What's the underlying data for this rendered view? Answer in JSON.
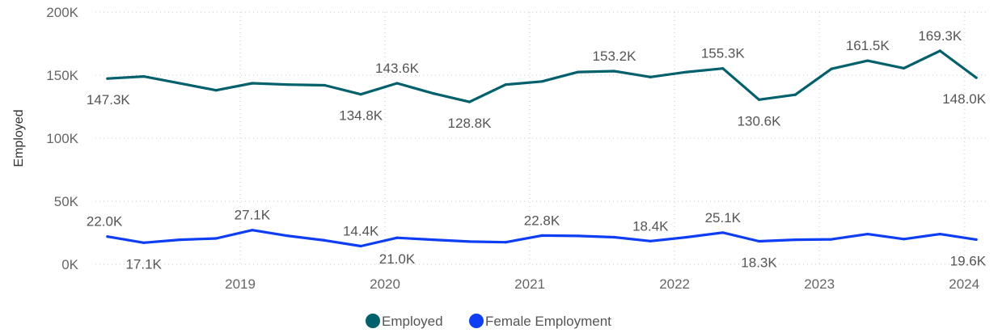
{
  "chart_data": {
    "type": "line",
    "ylabel": "Employed",
    "ylim": [
      0,
      200000
    ],
    "y_ticks": [
      {
        "value": 0,
        "label": "0K"
      },
      {
        "value": 50000,
        "label": "50K"
      },
      {
        "value": 100000,
        "label": "100K"
      },
      {
        "value": 150000,
        "label": "150K"
      },
      {
        "value": 200000,
        "label": "200K"
      }
    ],
    "x_ticks": [
      "2019",
      "2020",
      "2021",
      "2022",
      "2023",
      "2024"
    ],
    "grid": true,
    "legend_position": "bottom-center",
    "x": [
      "2018-02",
      "2018-05",
      "2018-08",
      "2018-11",
      "2019-02",
      "2019-05",
      "2019-08",
      "2019-11",
      "2020-02",
      "2020-05",
      "2020-08",
      "2020-11",
      "2021-02",
      "2021-05",
      "2021-08",
      "2021-11",
      "2022-02",
      "2022-05",
      "2022-08",
      "2022-11",
      "2023-02",
      "2023-05",
      "2023-08",
      "2023-11",
      "2024-02"
    ],
    "series": [
      {
        "name": "Employed",
        "color": "#00606b",
        "values": [
          147300,
          149000,
          143500,
          138000,
          143600,
          142500,
          142000,
          134800,
          143600,
          135500,
          128800,
          142500,
          145000,
          152500,
          153200,
          148500,
          152500,
          155300,
          130600,
          134500,
          155000,
          161500,
          155500,
          169300,
          148000
        ],
        "labels": [
          {
            "index": 0,
            "text": "147.3K",
            "pos": "below"
          },
          {
            "index": 7,
            "text": "134.8K",
            "pos": "below"
          },
          {
            "index": 8,
            "text": "143.6K",
            "pos": "above"
          },
          {
            "index": 10,
            "text": "128.8K",
            "pos": "below"
          },
          {
            "index": 14,
            "text": "153.2K",
            "pos": "above"
          },
          {
            "index": 17,
            "text": "155.3K",
            "pos": "above"
          },
          {
            "index": 18,
            "text": "130.6K",
            "pos": "below"
          },
          {
            "index": 21,
            "text": "161.5K",
            "pos": "above"
          },
          {
            "index": 23,
            "text": "169.3K",
            "pos": "above"
          },
          {
            "index": 24,
            "text": "148.0K",
            "pos": "below"
          }
        ]
      },
      {
        "name": "Female Employment",
        "color": "#0d3ef5",
        "values": [
          22000,
          17100,
          19500,
          20500,
          27100,
          22500,
          19000,
          14400,
          21000,
          19500,
          18000,
          17500,
          22800,
          22500,
          21500,
          18400,
          21500,
          25100,
          18300,
          19500,
          19800,
          24000,
          20000,
          24000,
          19600
        ],
        "labels": [
          {
            "index": 0,
            "text": "22.0K",
            "pos": "above"
          },
          {
            "index": 1,
            "text": "17.1K",
            "pos": "below"
          },
          {
            "index": 4,
            "text": "27.1K",
            "pos": "above"
          },
          {
            "index": 7,
            "text": "14.4K",
            "pos": "above"
          },
          {
            "index": 8,
            "text": "21.0K",
            "pos": "below"
          },
          {
            "index": 12,
            "text": "22.8K",
            "pos": "above"
          },
          {
            "index": 15,
            "text": "18.4K",
            "pos": "above"
          },
          {
            "index": 17,
            "text": "25.1K",
            "pos": "above"
          },
          {
            "index": 18,
            "text": "18.3K",
            "pos": "below"
          },
          {
            "index": 24,
            "text": "19.6K",
            "pos": "below"
          }
        ]
      }
    ]
  }
}
